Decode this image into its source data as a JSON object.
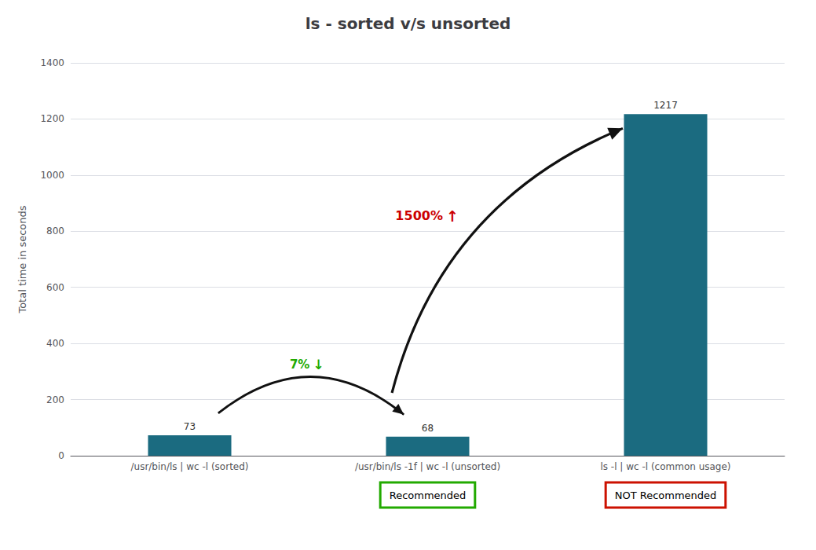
{
  "chart_data": {
    "type": "bar",
    "title": "ls - sorted v/s unsorted",
    "categories": [
      "/usr/bin/ls | wc -l (sorted)",
      "/usr/bin/ls -1f | wc -l (unsorted)",
      "ls -l | wc -l (common usage)"
    ],
    "values": [
      73,
      68,
      1217
    ],
    "color": "#1b6b80",
    "ylabel": "Total time in seconds",
    "ylim": [
      0,
      1400
    ],
    "yticks": [
      0,
      200,
      400,
      600,
      800,
      1000,
      1200,
      1400
    ],
    "grid": true,
    "data_labels": true,
    "annotations": [
      {
        "text": "7%",
        "color": "#22aa00"
      },
      {
        "text": "↓",
        "color": "#22aa00"
      },
      {
        "text": "1500%",
        "color": "#cc0000"
      },
      {
        "text": "↑",
        "color": "#cc0000"
      },
      {
        "text": "Recommended",
        "color": "#22aa00",
        "category": "/usr/bin/ls -1f | wc -l (unsorted)"
      },
      {
        "text": "NOT Recommended",
        "color": "#cc1100",
        "category": "ls -l | wc -l (common usage)"
      }
    ]
  }
}
